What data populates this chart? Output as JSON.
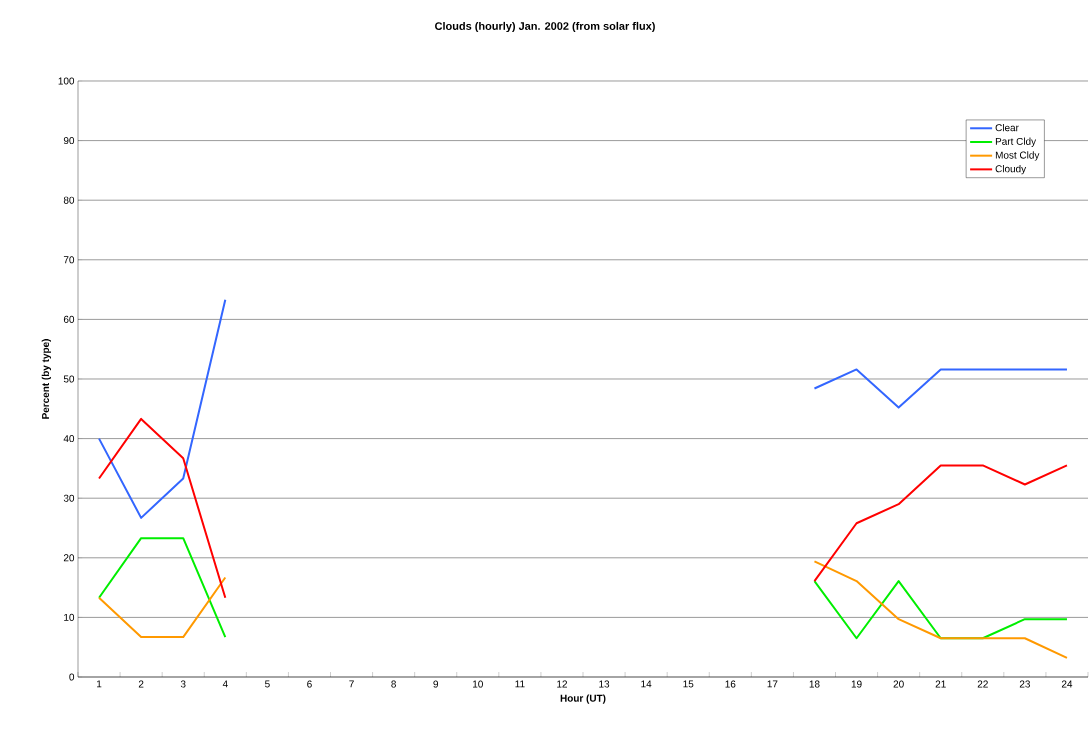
{
  "chart_data": {
    "type": "line",
    "title": "Clouds (hourly) Jan. 2002 (from solar flux)",
    "xlabel": "Hour (UT)",
    "ylabel": "Percent (by type)",
    "categories": [
      "1",
      "2",
      "3",
      "4",
      "5",
      "6",
      "7",
      "8",
      "9",
      "10",
      "11",
      "12",
      "13",
      "14",
      "15",
      "16",
      "17",
      "18",
      "19",
      "20",
      "21",
      "22",
      "23",
      "24"
    ],
    "series": [
      {
        "name": "Clear",
        "color": "#3366ff",
        "values": [
          40,
          26.7,
          33.3,
          63.3,
          null,
          null,
          null,
          null,
          null,
          null,
          null,
          null,
          null,
          null,
          null,
          null,
          null,
          48.4,
          51.6,
          45.2,
          51.6,
          51.6,
          51.6,
          51.6
        ]
      },
      {
        "name": "Part Cldy",
        "color": "#00ee00",
        "values": [
          13.3,
          23.3,
          23.3,
          6.7,
          null,
          null,
          null,
          null,
          null,
          null,
          null,
          null,
          null,
          null,
          null,
          null,
          null,
          16.1,
          6.5,
          16.1,
          6.5,
          6.5,
          9.7,
          9.7
        ]
      },
      {
        "name": "Most Cldy",
        "color": "#ff9900",
        "values": [
          13.3,
          6.7,
          6.7,
          16.7,
          null,
          null,
          null,
          null,
          null,
          null,
          null,
          null,
          null,
          null,
          null,
          null,
          null,
          19.4,
          16.1,
          9.7,
          6.5,
          6.5,
          6.5,
          3.2
        ]
      },
      {
        "name": "Cloudy",
        "color": "#ff0000",
        "values": [
          33.3,
          43.3,
          36.7,
          13.3,
          null,
          null,
          null,
          null,
          null,
          null,
          null,
          null,
          null,
          null,
          null,
          null,
          null,
          16.1,
          25.8,
          29.0,
          35.5,
          35.5,
          32.3,
          35.5
        ]
      }
    ],
    "ylim": [
      0,
      100
    ],
    "yticks": [
      0,
      10,
      20,
      30,
      40,
      50,
      60,
      70,
      80,
      90,
      100
    ],
    "grid": "y",
    "legend": "top right",
    "marker": "none",
    "line_style": "solid"
  }
}
